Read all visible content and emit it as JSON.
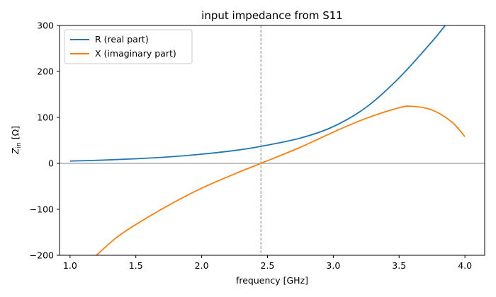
{
  "chart_data": {
    "type": "line",
    "title": "input impedance from S11",
    "xlabel": "frequency [GHz]",
    "ylabel": "Z_in [Ω]",
    "xlim": [
      0.92,
      4.15
    ],
    "ylim": [
      -200,
      300
    ],
    "xticks": [
      1.0,
      1.5,
      2.0,
      2.5,
      3.0,
      3.5,
      4.0
    ],
    "yticks": [
      -200,
      -100,
      0,
      100,
      200,
      300
    ],
    "xtick_labels": [
      "1.0",
      "1.5",
      "2.0",
      "2.5",
      "3.0",
      "3.5",
      "4.0"
    ],
    "ytick_labels": [
      "−200",
      "−100",
      "0",
      "100",
      "200",
      "300"
    ],
    "legend_position": "top-left",
    "grid": false,
    "vertical_reference_x": 2.45,
    "horizontal_reference_y": 0,
    "series": [
      {
        "name": "R (real part)",
        "color": "#1f77b4",
        "x": [
          1.0,
          1.25,
          1.5,
          1.75,
          2.0,
          2.25,
          2.45,
          2.75,
          3.0,
          3.25,
          3.5,
          3.75,
          3.85
        ],
        "y": [
          5,
          7,
          10,
          14,
          20,
          28,
          37,
          55,
          80,
          122,
          186,
          265,
          300
        ]
      },
      {
        "name": "X (imaginary part)",
        "color": "#ff7f0e",
        "x": [
          1.2,
          1.35,
          1.5,
          1.75,
          2.0,
          2.25,
          2.45,
          2.75,
          3.0,
          3.25,
          3.5,
          3.6,
          3.75,
          3.9,
          4.0
        ],
        "y": [
          -200,
          -162,
          -133,
          -91,
          -54,
          -23,
          0,
          35,
          68,
          98,
          121,
          124,
          116,
          90,
          58
        ]
      }
    ]
  }
}
